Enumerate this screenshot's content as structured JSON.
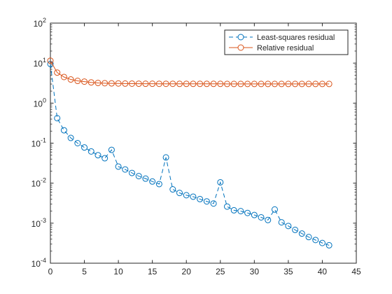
{
  "chart_data": {
    "type": "line",
    "title": "",
    "xlabel": "",
    "ylabel": "",
    "xlim": [
      0,
      45
    ],
    "ylim": [
      0.0001,
      100
    ],
    "yscale": "log",
    "xticks": [
      0,
      5,
      10,
      15,
      20,
      25,
      30,
      35,
      40,
      45
    ],
    "yticks": [
      {
        "base": "10",
        "exp": "-4",
        "value": 0.0001
      },
      {
        "base": "10",
        "exp": "-3",
        "value": 0.001
      },
      {
        "base": "10",
        "exp": "-2",
        "value": 0.01
      },
      {
        "base": "10",
        "exp": "-1",
        "value": 0.1
      },
      {
        "base": "10",
        "exp": "0",
        "value": 1
      },
      {
        "base": "10",
        "exp": "1",
        "value": 10
      },
      {
        "base": "10",
        "exp": "2",
        "value": 100
      }
    ],
    "grid": false,
    "legend_position": "top-right",
    "x": [
      0,
      1,
      2,
      3,
      4,
      5,
      6,
      7,
      8,
      9,
      10,
      11,
      12,
      13,
      14,
      15,
      16,
      17,
      18,
      19,
      20,
      21,
      22,
      23,
      24,
      25,
      26,
      27,
      28,
      29,
      30,
      31,
      32,
      33,
      34,
      35,
      36,
      37,
      38,
      39,
      40,
      41
    ],
    "series": [
      {
        "name": "Least-squares residual",
        "color": "#0072BD",
        "line_style": "dashed",
        "marker": "circle",
        "values": [
          9.5,
          0.42,
          0.21,
          0.135,
          0.1,
          0.078,
          0.062,
          0.05,
          0.042,
          0.068,
          0.026,
          0.022,
          0.018,
          0.015,
          0.013,
          0.011,
          0.0095,
          0.044,
          0.007,
          0.0057,
          0.005,
          0.0046,
          0.004,
          0.0035,
          0.0031,
          0.0105,
          0.0026,
          0.0021,
          0.002,
          0.0018,
          0.0016,
          0.0014,
          0.0012,
          0.0022,
          0.00105,
          0.00085,
          0.00068,
          0.00055,
          0.00045,
          0.00038,
          0.00032,
          0.00028
        ]
      },
      {
        "name": "Relative residual",
        "color": "#D95319",
        "line_style": "solid",
        "marker": "circle",
        "values": [
          11.5,
          5.8,
          4.5,
          3.9,
          3.6,
          3.45,
          3.3,
          3.2,
          3.15,
          3.12,
          3.1,
          3.08,
          3.07,
          3.06,
          3.05,
          3.05,
          3.04,
          3.04,
          3.04,
          3.03,
          3.03,
          3.03,
          3.03,
          3.03,
          3.03,
          3.03,
          3.02,
          3.02,
          3.02,
          3.02,
          3.02,
          3.02,
          3.02,
          3.02,
          3.02,
          3.02,
          3.02,
          3.02,
          3.02,
          3.02,
          3.02,
          3.02
        ]
      }
    ]
  }
}
